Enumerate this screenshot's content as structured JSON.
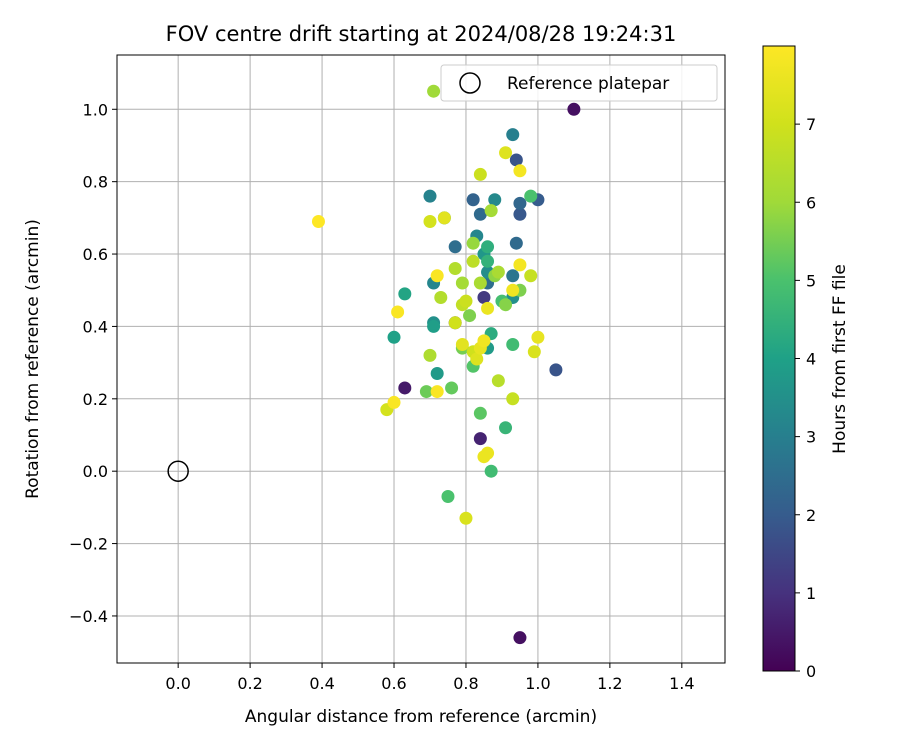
{
  "chart_data": {
    "type": "scatter",
    "title": "FOV centre drift starting at 2024/08/28 19:24:31",
    "xlabel": "Angular distance from reference (arcmin)",
    "ylabel": "Rotation from reference (arcmin)",
    "xlim": [
      -0.17,
      1.52
    ],
    "ylim": [
      -0.53,
      1.15
    ],
    "xticks": [
      0.0,
      0.2,
      0.4,
      0.6,
      0.8,
      1.0,
      1.2,
      1.4
    ],
    "xtick_labels": [
      "0.0",
      "0.2",
      "0.4",
      "0.6",
      "0.8",
      "1.0",
      "1.2",
      "1.4"
    ],
    "yticks": [
      -0.4,
      -0.2,
      0.0,
      0.2,
      0.4,
      0.6,
      0.8,
      1.0
    ],
    "ytick_labels": [
      "−0.4",
      "−0.2",
      "0.0",
      "0.2",
      "0.4",
      "0.6",
      "0.8",
      "1.0"
    ],
    "grid": true,
    "legend_position": "top-right",
    "legend": [
      {
        "label": "Reference platepar",
        "marker": "hollow circle"
      }
    ],
    "reference_point": {
      "x": 0.0,
      "y": 0.0
    },
    "colorbar": {
      "label": "Hours from first FF file",
      "colormap": "viridis",
      "range": [
        0,
        8
      ],
      "ticks": [
        0,
        1,
        2,
        3,
        4,
        5,
        6,
        7
      ],
      "tick_labels": [
        "0",
        "1",
        "2",
        "3",
        "4",
        "5",
        "6",
        "7"
      ]
    },
    "points": [
      {
        "x": 1.1,
        "y": 1.0,
        "h": 0.3
      },
      {
        "x": 0.95,
        "y": -0.46,
        "h": 0.3
      },
      {
        "x": 0.63,
        "y": 0.23,
        "h": 0.5
      },
      {
        "x": 0.84,
        "y": 0.09,
        "h": 0.7
      },
      {
        "x": 0.77,
        "y": 0.41,
        "h": 1.0
      },
      {
        "x": 0.85,
        "y": 0.48,
        "h": 1.2
      },
      {
        "x": 1.05,
        "y": 0.28,
        "h": 1.8
      },
      {
        "x": 0.94,
        "y": 0.86,
        "h": 1.8
      },
      {
        "x": 0.95,
        "y": 0.71,
        "h": 1.9
      },
      {
        "x": 1.0,
        "y": 0.75,
        "h": 2.0
      },
      {
        "x": 0.82,
        "y": 0.75,
        "h": 2.2
      },
      {
        "x": 0.95,
        "y": 0.74,
        "h": 2.3
      },
      {
        "x": 0.94,
        "y": 0.63,
        "h": 2.4
      },
      {
        "x": 0.84,
        "y": 0.71,
        "h": 2.4
      },
      {
        "x": 0.77,
        "y": 0.62,
        "h": 2.5
      },
      {
        "x": 0.86,
        "y": 0.52,
        "h": 2.5
      },
      {
        "x": 0.93,
        "y": 0.54,
        "h": 2.7
      },
      {
        "x": 0.93,
        "y": 0.93,
        "h": 3.0
      },
      {
        "x": 0.7,
        "y": 0.76,
        "h": 3.1
      },
      {
        "x": 0.83,
        "y": 0.65,
        "h": 3.2
      },
      {
        "x": 0.71,
        "y": 0.52,
        "h": 3.2
      },
      {
        "x": 0.88,
        "y": 0.75,
        "h": 3.3
      },
      {
        "x": 0.86,
        "y": 0.55,
        "h": 3.4
      },
      {
        "x": 0.93,
        "y": 0.48,
        "h": 3.5
      },
      {
        "x": 0.71,
        "y": 0.41,
        "h": 3.5
      },
      {
        "x": 0.74,
        "y": 0.7,
        "h": 3.6
      },
      {
        "x": 0.85,
        "y": 0.6,
        "h": 3.7
      },
      {
        "x": 0.86,
        "y": 0.34,
        "h": 3.8
      },
      {
        "x": 0.72,
        "y": 0.27,
        "h": 3.8
      },
      {
        "x": 0.71,
        "y": 0.4,
        "h": 3.9
      },
      {
        "x": 0.6,
        "y": 0.37,
        "h": 4.0
      },
      {
        "x": 0.63,
        "y": 0.49,
        "h": 4.1
      },
      {
        "x": 0.87,
        "y": 0.38,
        "h": 4.3
      },
      {
        "x": 0.86,
        "y": 0.62,
        "h": 4.4
      },
      {
        "x": 0.86,
        "y": 0.58,
        "h": 4.5
      },
      {
        "x": 0.91,
        "y": 0.12,
        "h": 4.6
      },
      {
        "x": 0.87,
        "y": 0.0,
        "h": 4.8
      },
      {
        "x": 0.93,
        "y": 0.35,
        "h": 4.8
      },
      {
        "x": 0.9,
        "y": 0.47,
        "h": 4.9
      },
      {
        "x": 0.75,
        "y": -0.07,
        "h": 5.0
      },
      {
        "x": 0.98,
        "y": 0.76,
        "h": 5.0
      },
      {
        "x": 0.82,
        "y": 0.29,
        "h": 5.1
      },
      {
        "x": 0.84,
        "y": 0.16,
        "h": 5.2
      },
      {
        "x": 0.76,
        "y": 0.23,
        "h": 5.3
      },
      {
        "x": 0.69,
        "y": 0.22,
        "h": 5.4
      },
      {
        "x": 0.79,
        "y": 0.34,
        "h": 5.5
      },
      {
        "x": 0.81,
        "y": 0.43,
        "h": 5.6
      },
      {
        "x": 0.95,
        "y": 0.5,
        "h": 5.6
      },
      {
        "x": 0.91,
        "y": 0.46,
        "h": 5.7
      },
      {
        "x": 0.88,
        "y": 0.54,
        "h": 5.8
      },
      {
        "x": 0.82,
        "y": 0.63,
        "h": 5.9
      },
      {
        "x": 0.71,
        "y": 1.05,
        "h": 6.0
      },
      {
        "x": 0.87,
        "y": 0.72,
        "h": 6.1
      },
      {
        "x": 0.79,
        "y": 0.52,
        "h": 6.1
      },
      {
        "x": 0.84,
        "y": 0.52,
        "h": 6.2
      },
      {
        "x": 0.89,
        "y": 0.55,
        "h": 6.2
      },
      {
        "x": 0.7,
        "y": 0.32,
        "h": 6.3
      },
      {
        "x": 0.77,
        "y": 0.56,
        "h": 6.4
      },
      {
        "x": 0.73,
        "y": 0.48,
        "h": 6.4
      },
      {
        "x": 0.89,
        "y": 0.25,
        "h": 6.5
      },
      {
        "x": 0.82,
        "y": 0.58,
        "h": 6.6
      },
      {
        "x": 0.79,
        "y": 0.46,
        "h": 6.7
      },
      {
        "x": 0.93,
        "y": 0.2,
        "h": 6.8
      },
      {
        "x": 0.98,
        "y": 0.54,
        "h": 6.8
      },
      {
        "x": 0.84,
        "y": 0.82,
        "h": 6.9
      },
      {
        "x": 0.8,
        "y": 0.47,
        "h": 6.9
      },
      {
        "x": 0.82,
        "y": 0.33,
        "h": 7.0
      },
      {
        "x": 0.77,
        "y": 0.41,
        "h": 7.0
      },
      {
        "x": 0.7,
        "y": 0.69,
        "h": 7.1
      },
      {
        "x": 0.58,
        "y": 0.17,
        "h": 7.1
      },
      {
        "x": 0.8,
        "y": -0.13,
        "h": 7.2
      },
      {
        "x": 0.99,
        "y": 0.33,
        "h": 7.2
      },
      {
        "x": 0.91,
        "y": 0.88,
        "h": 7.3
      },
      {
        "x": 0.83,
        "y": 0.31,
        "h": 7.3
      },
      {
        "x": 0.79,
        "y": 0.35,
        "h": 7.4
      },
      {
        "x": 0.74,
        "y": 0.7,
        "h": 7.4
      },
      {
        "x": 1.0,
        "y": 0.37,
        "h": 7.5
      },
      {
        "x": 0.84,
        "y": 0.34,
        "h": 7.5
      },
      {
        "x": 0.86,
        "y": 0.45,
        "h": 7.6
      },
      {
        "x": 0.85,
        "y": 0.04,
        "h": 7.6
      },
      {
        "x": 0.86,
        "y": 0.05,
        "h": 7.6
      },
      {
        "x": 0.85,
        "y": 0.36,
        "h": 7.7
      },
      {
        "x": 0.93,
        "y": 0.5,
        "h": 7.7
      },
      {
        "x": 0.95,
        "y": 0.83,
        "h": 7.8
      },
      {
        "x": 0.95,
        "y": 0.57,
        "h": 7.8
      },
      {
        "x": 0.72,
        "y": 0.54,
        "h": 7.9
      },
      {
        "x": 0.61,
        "y": 0.44,
        "h": 7.9
      },
      {
        "x": 0.72,
        "y": 0.22,
        "h": 7.9
      },
      {
        "x": 0.6,
        "y": 0.19,
        "h": 7.9
      },
      {
        "x": 0.39,
        "y": 0.69,
        "h": 8.0
      }
    ]
  }
}
